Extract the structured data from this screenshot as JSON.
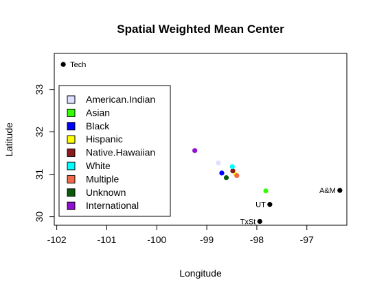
{
  "chart_data": {
    "type": "scatter",
    "title": "Spatial Weighted Mean Center",
    "xlabel": "Longitude",
    "ylabel": "Latitude",
    "xlim": [
      -102.05,
      -96.2
    ],
    "ylim": [
      29.8,
      33.85
    ],
    "xticks": [
      -102,
      -101,
      -100,
      -99,
      -98,
      -97
    ],
    "yticks": [
      30,
      31,
      32,
      33
    ],
    "legend_position": "left",
    "series": [
      {
        "name": "American.Indian",
        "color": "#dde0ff",
        "points": [
          {
            "x": -98.77,
            "y": 31.27
          }
        ]
      },
      {
        "name": "Asian",
        "color": "#33ff00",
        "points": [
          {
            "x": -97.82,
            "y": 30.61
          }
        ]
      },
      {
        "name": "Black",
        "color": "#0000ff",
        "points": [
          {
            "x": -98.7,
            "y": 31.03
          }
        ]
      },
      {
        "name": "Hispanic",
        "color": "#ffff00",
        "points": [
          {
            "x": -98.43,
            "y": 31.0
          }
        ]
      },
      {
        "name": "Native.Hawaiian",
        "color": "#8b1a1a",
        "points": [
          {
            "x": -98.48,
            "y": 31.08
          }
        ]
      },
      {
        "name": "White",
        "color": "#00ffff",
        "points": [
          {
            "x": -98.49,
            "y": 31.18
          }
        ]
      },
      {
        "name": "Multiple",
        "color": "#f26a4a",
        "points": [
          {
            "x": -98.4,
            "y": 30.97
          }
        ]
      },
      {
        "name": "Unknown",
        "color": "#0a5a0a",
        "points": [
          {
            "x": -98.61,
            "y": 30.92
          }
        ]
      },
      {
        "name": "International",
        "color": "#9010d0",
        "points": [
          {
            "x": -99.24,
            "y": 31.56
          }
        ]
      }
    ],
    "reference_points": [
      {
        "label": "Tech",
        "x": -101.87,
        "y": 33.59,
        "label_side": "right"
      },
      {
        "label": "A&M",
        "x": -96.34,
        "y": 30.62,
        "label_side": "left"
      },
      {
        "label": "UT",
        "x": -97.74,
        "y": 30.29,
        "label_side": "left"
      },
      {
        "label": "TxSt",
        "x": -97.94,
        "y": 29.89,
        "label_side": "left"
      }
    ]
  }
}
